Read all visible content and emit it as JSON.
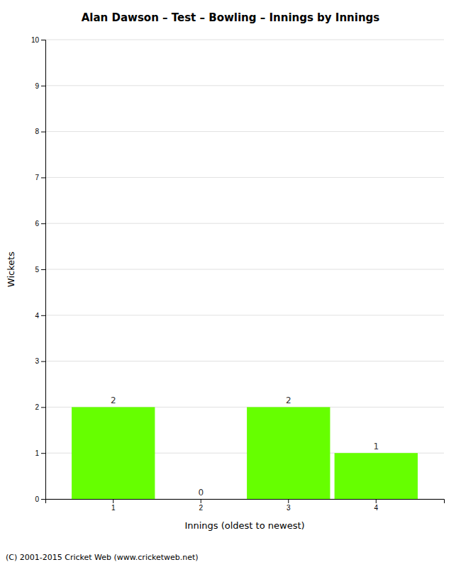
{
  "chart_data": {
    "type": "bar",
    "title": "Alan Dawson – Test – Bowling – Innings by Innings",
    "categories": [
      "1",
      "2",
      "3",
      "4"
    ],
    "values": [
      2,
      0,
      2,
      1
    ],
    "color": "#66ff00",
    "xlabel": "Innings (oldest to newest)",
    "ylabel": "Wickets",
    "ylim": [
      0,
      10
    ],
    "yticks": [
      0,
      1,
      2,
      3,
      4,
      5,
      6,
      7,
      8,
      9,
      10
    ],
    "grid": true,
    "data_labels": true,
    "footer": "(C) 2001-2015 Cricket Web (www.cricketweb.net)"
  }
}
